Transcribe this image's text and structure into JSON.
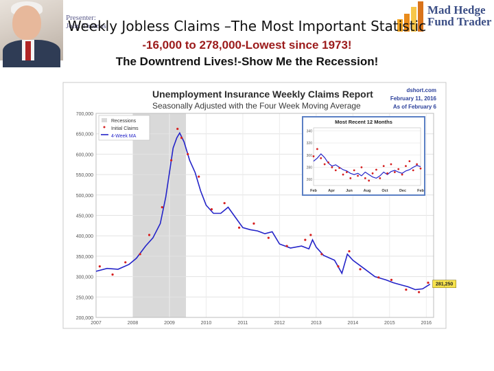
{
  "presenter": {
    "label": "Presenter:",
    "name": "John Thomas"
  },
  "logo": {
    "line1": "Mad Hedge",
    "line2": "Fund Trader",
    "colors": [
      "#f5a623",
      "#e88b1b",
      "#f7c64a",
      "#d9731a"
    ]
  },
  "slide": {
    "title": "Weekly Jobless Claims –The Most Important Statistic",
    "subtitle1": "-16,000 to 278,000-Lowest since 1973!",
    "subtitle2": "The Downtrend Lives!-Show Me the Recession!"
  },
  "chart_data": {
    "type": "line",
    "title": "Unemployment Insurance Weekly Claims Report",
    "subtitle": "Seasonally Adjusted with the Four Week Moving Average",
    "source": "dshort.com",
    "date": "February 11, 2016",
    "as_of": "As of February 6",
    "legend": [
      "Recessions",
      "Initial Claims",
      "4-Week MA"
    ],
    "legend_position": "top-left",
    "y_ticks": [
      "700,000",
      "650,000",
      "600,000",
      "550,000",
      "500,000",
      "450,000",
      "400,000",
      "350,000",
      "300,000",
      "250,000",
      "200,000"
    ],
    "ylim": [
      200000,
      700000
    ],
    "x_ticks": [
      "2007",
      "2008",
      "2009",
      "2010",
      "2011",
      "2012",
      "2013",
      "2014",
      "2015",
      "2016"
    ],
    "xlim": [
      2007.0,
      2016.2
    ],
    "recession": [
      2008.0,
      2009.45
    ],
    "grid": true,
    "callout": "281,250",
    "colors": {
      "ma": "#2323c8",
      "claims": "#d62020",
      "recession": "#d9d9d9",
      "header": "#2b2b2b",
      "meta": "#2a3f9a"
    },
    "series": [
      {
        "name": "4-Week MA",
        "x": [
          2007.0,
          2007.3,
          2007.6,
          2007.9,
          2008.1,
          2008.35,
          2008.55,
          2008.75,
          2008.9,
          2009.0,
          2009.1,
          2009.2,
          2009.28,
          2009.4,
          2009.55,
          2009.7,
          2009.85,
          2010.0,
          2010.2,
          2010.4,
          2010.6,
          2010.8,
          2011.0,
          2011.2,
          2011.4,
          2011.6,
          2011.8,
          2012.0,
          2012.3,
          2012.6,
          2012.8,
          2012.9,
          2013.0,
          2013.2,
          2013.5,
          2013.7,
          2013.85,
          2014.0,
          2014.3,
          2014.6,
          2014.9,
          2015.1,
          2015.3,
          2015.5,
          2015.7,
          2015.9,
          2016.1
        ],
        "values": [
          313000,
          320000,
          318000,
          330000,
          345000,
          375000,
          395000,
          430000,
          495000,
          555000,
          615000,
          640000,
          652000,
          630000,
          585000,
          555000,
          510000,
          475000,
          455000,
          455000,
          470000,
          445000,
          420000,
          415000,
          412000,
          405000,
          410000,
          380000,
          370000,
          375000,
          368000,
          390000,
          372000,
          352000,
          340000,
          308000,
          355000,
          340000,
          320000,
          300000,
          292000,
          285000,
          280000,
          275000,
          268000,
          270000,
          281250
        ]
      },
      {
        "name": "Initial Claims",
        "x": [
          2007.1,
          2007.45,
          2007.8,
          2008.2,
          2008.45,
          2008.8,
          2009.05,
          2009.22,
          2009.33,
          2009.5,
          2009.8,
          2010.15,
          2010.5,
          2010.9,
          2011.3,
          2011.7,
          2012.2,
          2012.7,
          2012.85,
          2013.15,
          2013.6,
          2013.9,
          2014.2,
          2014.7,
          2015.05,
          2015.45,
          2015.8,
          2016.05
        ],
        "values": [
          325000,
          305000,
          335000,
          355000,
          402000,
          470000,
          585000,
          662000,
          640000,
          600000,
          545000,
          465000,
          480000,
          420000,
          430000,
          395000,
          375000,
          390000,
          402000,
          355000,
          325000,
          362000,
          318000,
          298000,
          292000,
          268000,
          262000,
          285000
        ]
      }
    ],
    "inset": {
      "title": "Most Recent 12 Months",
      "x_ticks": [
        "Feb",
        "Apr",
        "Jun",
        "Aug",
        "Oct",
        "Dec",
        "Feb"
      ],
      "y_ticks": [
        "340",
        "320",
        "300",
        "280",
        "260"
      ],
      "ylim": [
        250,
        345
      ],
      "ma": [
        290,
        295,
        302,
        296,
        287,
        282,
        284,
        280,
        276,
        274,
        270,
        268,
        270,
        266,
        272,
        268,
        264,
        262,
        266,
        272,
        268,
        273,
        275,
        272,
        270,
        274,
        276,
        280,
        283,
        281
      ],
      "claims": [
        298,
        310,
        295,
        285,
        288,
        280,
        275,
        279,
        268,
        272,
        262,
        275,
        266,
        280,
        262,
        258,
        270,
        276,
        262,
        282,
        270,
        285,
        272,
        277,
        268,
        282,
        290,
        275,
        285,
        278
      ]
    }
  }
}
